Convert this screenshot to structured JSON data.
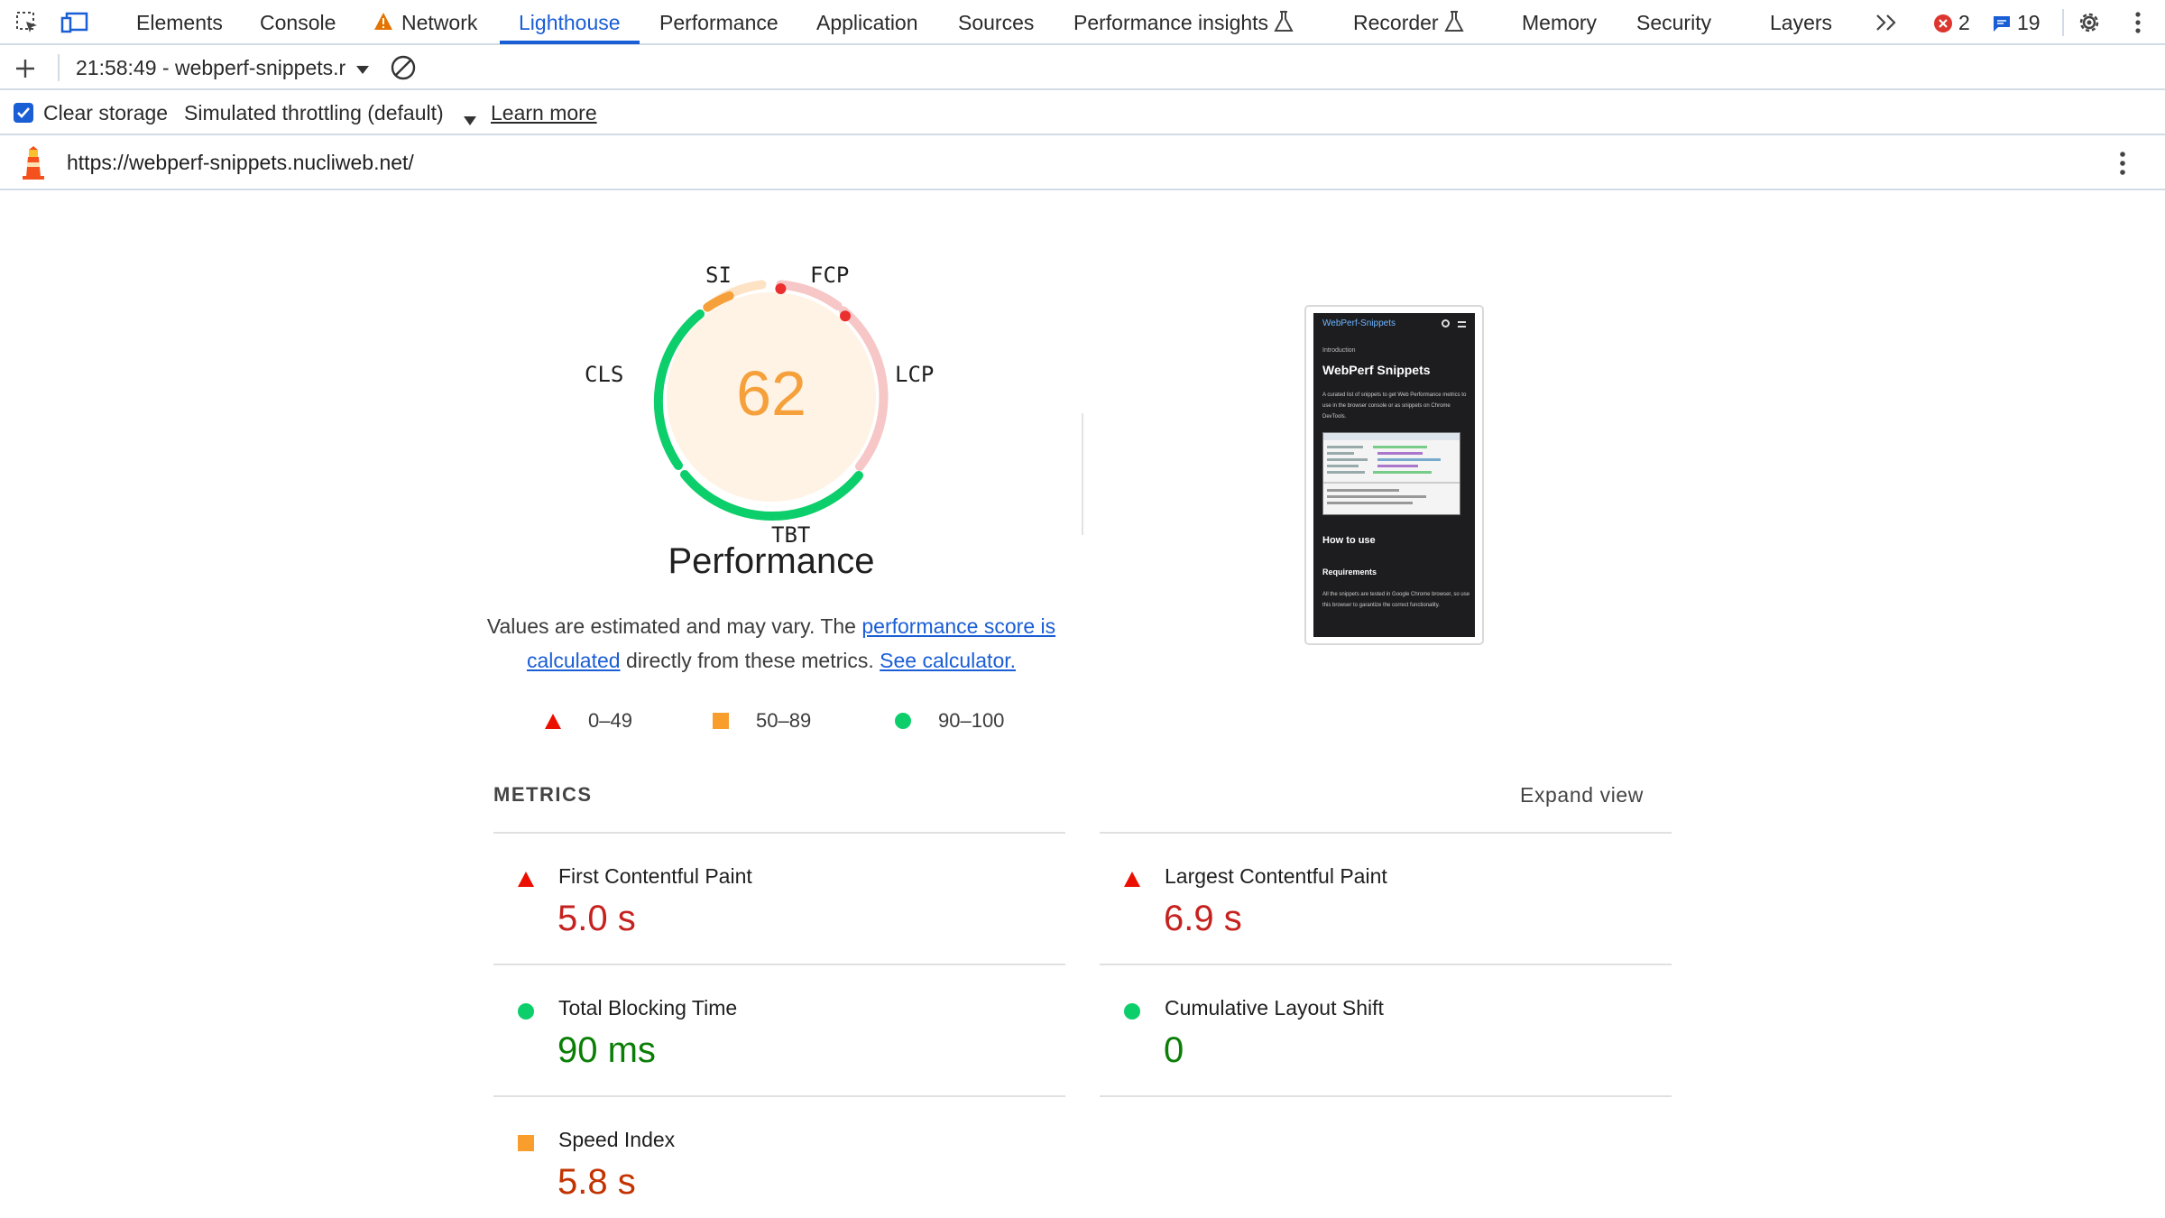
{
  "tabs": [
    {
      "label": "Elements",
      "warning": false
    },
    {
      "label": "Console",
      "warning": false
    },
    {
      "label": "Network",
      "warning": true
    },
    {
      "label": "Lighthouse",
      "active": true
    },
    {
      "label": "Performance"
    },
    {
      "label": "Application"
    },
    {
      "label": "Sources"
    },
    {
      "label": "Performance insights",
      "experimental": true
    },
    {
      "label": "Recorder",
      "experimental": true
    },
    {
      "label": "Memory"
    },
    {
      "label": "Security"
    },
    {
      "label": "Layers"
    }
  ],
  "counters": {
    "errors": "2",
    "messages": "19"
  },
  "toolbar": {
    "report": "21:58:49 - webperf-snippets.r",
    "clear_storage": "Clear storage",
    "throttling": "Simulated throttling (default)",
    "learn_more": "Learn more"
  },
  "url": "https://webperf-snippets.nucliweb.net/",
  "gauge": {
    "score": "62",
    "title": "Performance",
    "labels": {
      "si": "SI",
      "fcp": "FCP",
      "lcp": "LCP",
      "tbt": "TBT",
      "cls": "CLS"
    },
    "colors": {
      "fail": "#eb0f00",
      "average": "#f99e2d",
      "pass": "#0cce6b",
      "score_text": "#f5a03a"
    }
  },
  "description": {
    "prefix": "Values are estimated and may vary. The ",
    "link1": "performance score is calculated",
    "middle": " directly from these metrics. ",
    "link2": "See calculator."
  },
  "legend": {
    "fail": "0–49",
    "average": "50–89",
    "pass": "90–100"
  },
  "thumbnail": {
    "site_name": "WebPerf-Snippets",
    "intro": "Introduction",
    "heading": "WebPerf Snippets",
    "paragraph": "A curated list of snippets to get Web Performance metrics to use in the browser console or as snippets on Chrome DevTools.",
    "how_to_use": "How to use",
    "requirements": "Requirements",
    "req_text": "All the snippets are tested in Google Chrome browser, so use this browser to garantize the correct functionality."
  },
  "metrics": {
    "heading": "METRICS",
    "expand": "Expand view",
    "items": [
      {
        "name": "First Contentful Paint",
        "value": "5.0 s",
        "rating": "fail"
      },
      {
        "name": "Largest Contentful Paint",
        "value": "6.9 s",
        "rating": "fail"
      },
      {
        "name": "Total Blocking Time",
        "value": "90 ms",
        "rating": "pass"
      },
      {
        "name": "Cumulative Layout Shift",
        "value": "0",
        "rating": "pass"
      },
      {
        "name": "Speed Index",
        "value": "5.8 s",
        "rating": "average"
      }
    ]
  }
}
